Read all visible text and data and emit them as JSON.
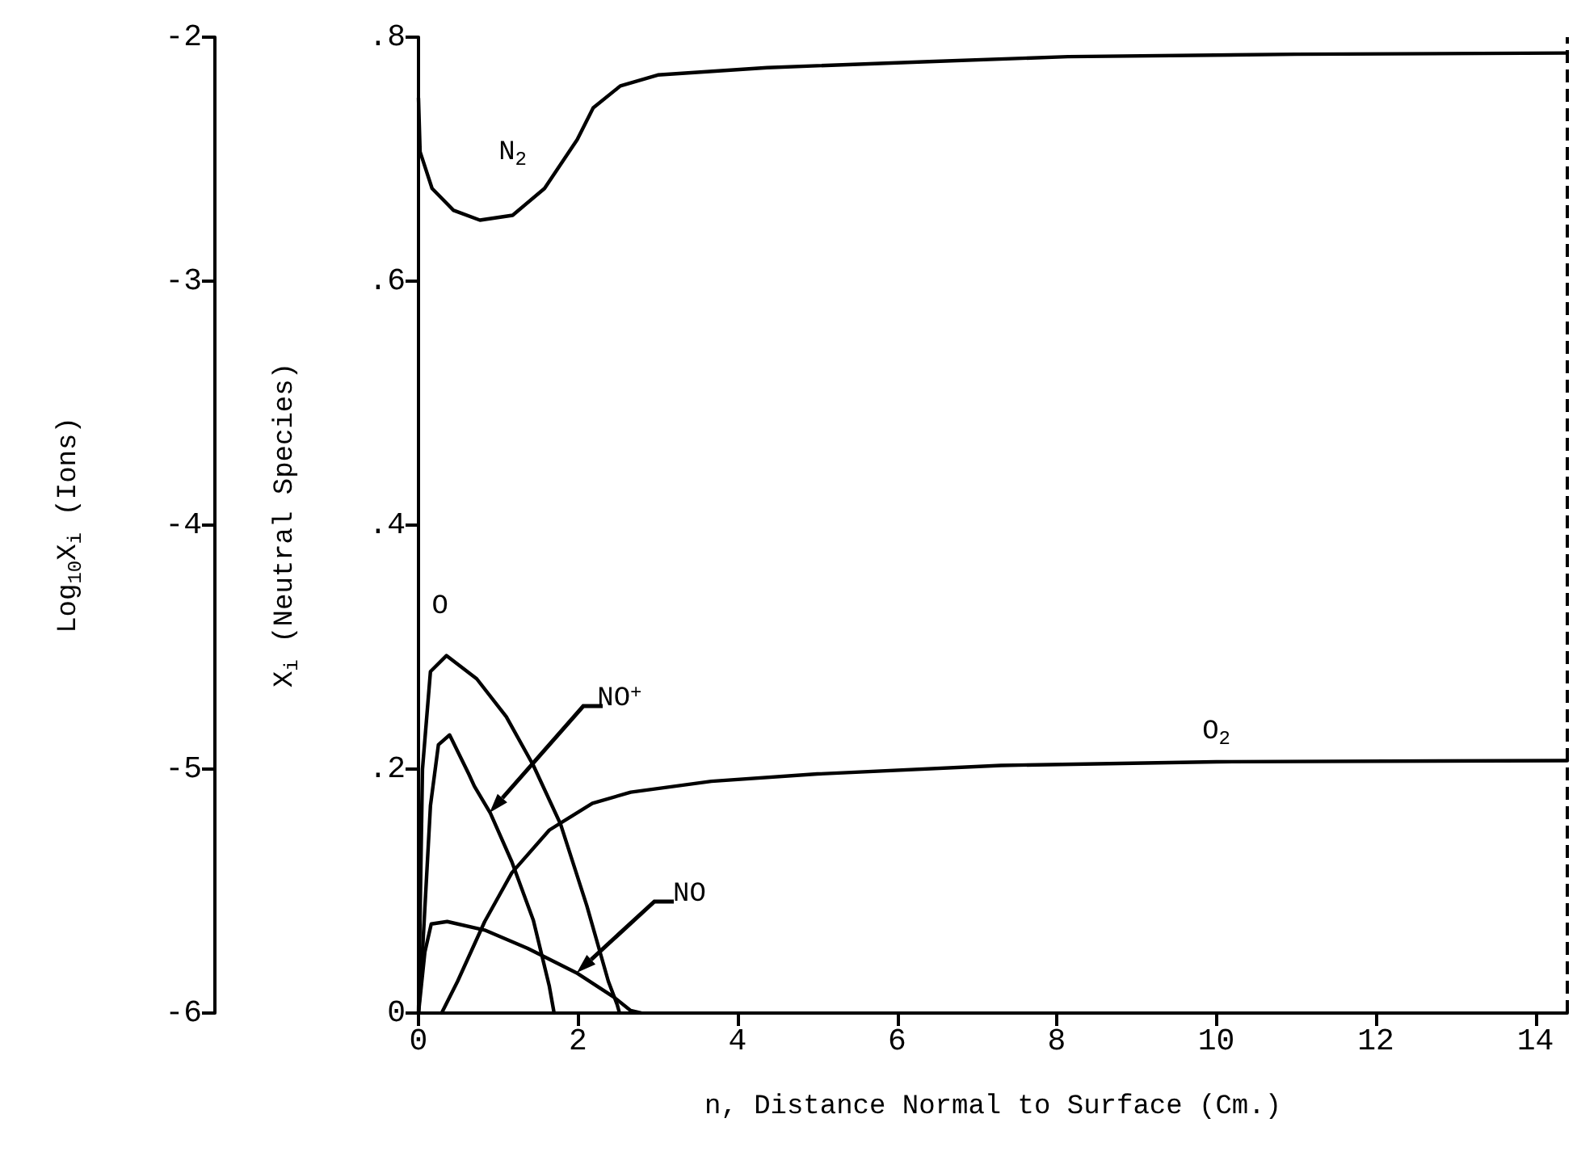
{
  "chart_data": {
    "type": "line",
    "xlabel": "n, Distance Normal to Surface (Cm.)",
    "ylabel": "X$_{i}$ (Neutral Species)",
    "y2label": "Log$_{10}$X$_{i}$ (Ions)",
    "xlim": [
      0,
      14.4
    ],
    "xticks": [
      0,
      2,
      4,
      6,
      8,
      10,
      12,
      14
    ],
    "ylim": [
      0,
      0.8
    ],
    "yticks": [
      {
        "value": 0,
        "label": "0"
      },
      {
        "value": 0.2,
        "label": ".2"
      },
      {
        "value": 0.4,
        "label": ".4"
      },
      {
        "value": 0.6,
        "label": ".6"
      },
      {
        "value": 0.8,
        "label": ".8"
      }
    ],
    "y2lim": [
      -6,
      -2
    ],
    "y2ticks": [
      -6,
      -5,
      -4,
      -3,
      -2
    ],
    "grid": false,
    "marker": "none",
    "line_style": "solid",
    "series": [
      {
        "color": "#000000",
        "x": [
          0,
          0.02,
          0.17,
          0.44,
          0.77,
          1.18,
          1.58,
          1.99,
          2.19,
          2.53,
          3.0,
          4.37,
          6.4,
          8.14,
          11,
          14.4
        ],
        "values": [
          0.75,
          0.706,
          0.676,
          0.658,
          0.65,
          0.654,
          0.676,
          0.716,
          0.742,
          0.76,
          0.769,
          0.775,
          0.78,
          0.784,
          0.786,
          0.787
        ]
      },
      {
        "color": "#000000",
        "x": [
          0.29,
          0.49,
          0.83,
          1.17,
          1.64,
          2.18,
          2.66,
          3.67,
          5.0,
          7.3,
          10,
          14.4
        ],
        "values": [
          0,
          0.026,
          0.075,
          0.115,
          0.15,
          0.172,
          0.181,
          0.19,
          0.196,
          0.203,
          0.206,
          0.207
        ]
      },
      {
        "color": "#000000",
        "x": [
          0,
          0.05,
          0.15,
          0.35,
          0.73,
          1.1,
          1.44,
          1.78,
          2.11,
          2.38,
          2.49,
          2.52
        ],
        "values": [
          0,
          0.2,
          0.28,
          0.293,
          0.274,
          0.243,
          0.203,
          0.155,
          0.088,
          0.026,
          0.007,
          0
        ]
      },
      {
        "color": "#000000",
        "x": [
          0,
          0.08,
          0.16,
          0.36,
          0.83,
          1.37,
          1.98,
          2.45,
          2.66,
          2.79
        ],
        "values": [
          0,
          0.05,
          0.073,
          0.075,
          0.068,
          0.053,
          0.033,
          0.013,
          0.002,
          0
        ]
      },
      {
        "color": "#000000",
        "axis": "y2",
        "x": [
          0,
          0.05,
          0.15,
          0.25,
          0.39,
          0.63,
          0.7,
          0.9,
          1.17,
          1.44,
          1.64,
          1.7
        ],
        "values": [
          -6,
          -5.75,
          -5.15,
          -4.9,
          -4.86,
          -5.02,
          -5.07,
          -5.18,
          -5.38,
          -5.62,
          -5.89,
          -6
        ]
      }
    ],
    "ref_lines": [
      {
        "axis": "x",
        "value": 14.4,
        "color": "#000000",
        "line_style": "dashed"
      }
    ],
    "annotations": [
      "N$_{2}$",
      "O",
      "NO$^{+}$",
      "O$_{2}$",
      "NO"
    ]
  }
}
